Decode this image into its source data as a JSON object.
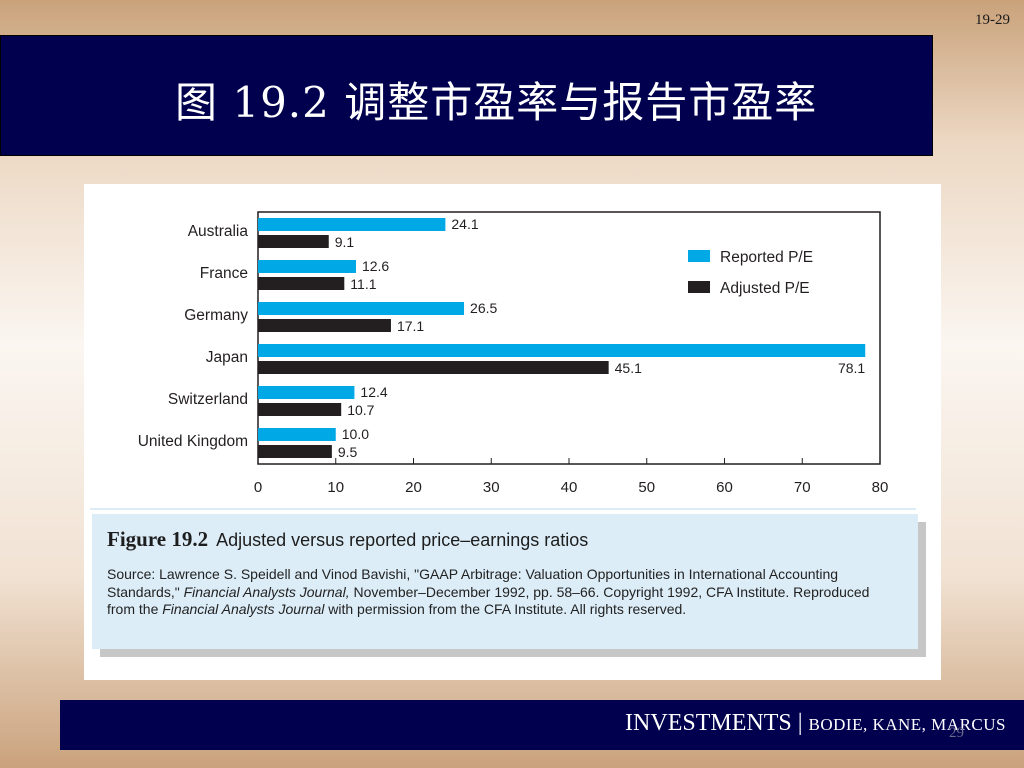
{
  "slide_number": "19-29",
  "title": "图 19.2 调整市盈率与报告市盈率",
  "chart_data": {
    "type": "bar",
    "orientation": "horizontal",
    "categories": [
      "Australia",
      "France",
      "Germany",
      "Japan",
      "Switzerland",
      "United Kingdom"
    ],
    "series": [
      {
        "name": "Reported P/E",
        "color": "#00a8e6",
        "values": [
          24.1,
          12.6,
          26.5,
          78.1,
          12.4,
          10.0
        ]
      },
      {
        "name": "Adjusted P/E",
        "color": "#231f20",
        "values": [
          9.1,
          11.1,
          17.1,
          45.1,
          10.7,
          9.5
        ]
      }
    ],
    "value_labels": {
      "Reported P/E": [
        "24.1",
        "12.6",
        "26.5",
        "78.1",
        "12.4",
        "10.0"
      ],
      "Adjusted P/E": [
        "9.1",
        "11.1",
        "17.1",
        "45.1",
        "10.7",
        "9.5"
      ]
    },
    "xlim": [
      0,
      80
    ],
    "xticks": [
      0,
      10,
      20,
      30,
      40,
      50,
      60,
      70,
      80
    ],
    "legend_position": "top-right",
    "grid": false
  },
  "caption": {
    "figure_label": "Figure 19.2",
    "figure_title": "Adjusted versus reported price–earnings ratios",
    "source_part1": "Source: Lawrence S. Speidell and Vinod Bavishi, \"GAAP Arbitrage: Valuation Opportunities in International Accounting Standards,\" ",
    "source_journal1": "Financial Analysts Journal,",
    "source_part2": " November–December 1992, pp. 58–66. Copyright 1992, CFA Institute. Reproduced from the ",
    "source_journal2": "Financial Analysts Journal",
    "source_part3": " with permission from the CFA Institute. All rights reserved."
  },
  "footer": {
    "book": "INVESTMENTS",
    "separator": " | ",
    "authors": "BODIE, KANE, MARCUS",
    "page_number": "29"
  }
}
